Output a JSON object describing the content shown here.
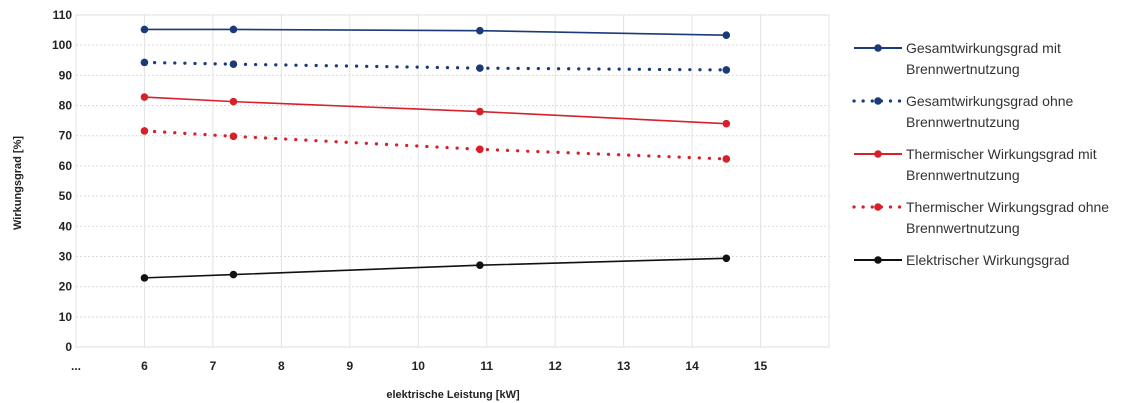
{
  "chart_data": {
    "type": "line",
    "xlabel": "elektrische Leistung [kW]",
    "ylabel": "Wirkungsgrad [%]",
    "x_ticks": [
      "...",
      "6",
      "7",
      "8",
      "9",
      "10",
      "11",
      "12",
      "13",
      "14",
      "15"
    ],
    "y_ticks": [
      "0",
      "10",
      "20",
      "30",
      "40",
      "50",
      "60",
      "70",
      "80",
      "90",
      "100",
      "110"
    ],
    "xlim": [
      5,
      16
    ],
    "ylim": [
      0,
      110
    ],
    "grid": true,
    "legend_position": "right",
    "series": [
      {
        "name": "Gesamtwirkungsgrad mit Brennwertnutzung",
        "color": "#1b3a7a",
        "style": "solid",
        "x": [
          6,
          7.3,
          10.9,
          14.5
        ],
        "y": [
          105.2,
          105.2,
          104.8,
          103.3
        ]
      },
      {
        "name": "Gesamtwirkungsgrad ohne Brennwertnutzung",
        "color": "#1b3a7a",
        "style": "dotted",
        "x": [
          6,
          7.3,
          10.9,
          14.5
        ],
        "y": [
          94.3,
          93.7,
          92.4,
          91.8
        ]
      },
      {
        "name": "Thermischer Wirkungsgrad mit Brennwertnutzung",
        "color": "#d6202a",
        "style": "solid",
        "x": [
          6,
          7.3,
          10.9,
          14.5
        ],
        "y": [
          82.8,
          81.3,
          78.0,
          74.0
        ]
      },
      {
        "name": "Thermischer Wirkungsgrad ohne Brennwertnutzung",
        "color": "#d6202a",
        "style": "dotted",
        "x": [
          6,
          7.3,
          10.9,
          14.5
        ],
        "y": [
          71.6,
          69.8,
          65.5,
          62.3
        ]
      },
      {
        "name": "Elektrischer Wirkungsgrad",
        "color": "#111111",
        "style": "solid",
        "x": [
          6,
          7.3,
          10.9,
          14.5
        ],
        "y": [
          22.9,
          24.0,
          27.1,
          29.4
        ]
      }
    ]
  }
}
